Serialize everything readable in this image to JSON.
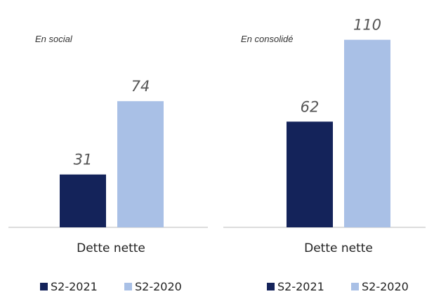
{
  "colors": {
    "series_2021": "#14235a",
    "series_2020": "#a9c0e6"
  },
  "chart_data": [
    {
      "type": "bar",
      "subtitle": "En social",
      "categories": [
        "Dette nette"
      ],
      "series": [
        {
          "name": "S2-2021",
          "values": [
            31
          ]
        },
        {
          "name": "S2-2020",
          "values": [
            74
          ]
        }
      ],
      "legend_position": "bottom"
    },
    {
      "type": "bar",
      "subtitle": "En consolidé",
      "categories": [
        "Dette nette"
      ],
      "series": [
        {
          "name": "S2-2021",
          "values": [
            62
          ]
        },
        {
          "name": "S2-2020",
          "values": [
            110
          ]
        }
      ],
      "legend_position": "bottom"
    }
  ]
}
